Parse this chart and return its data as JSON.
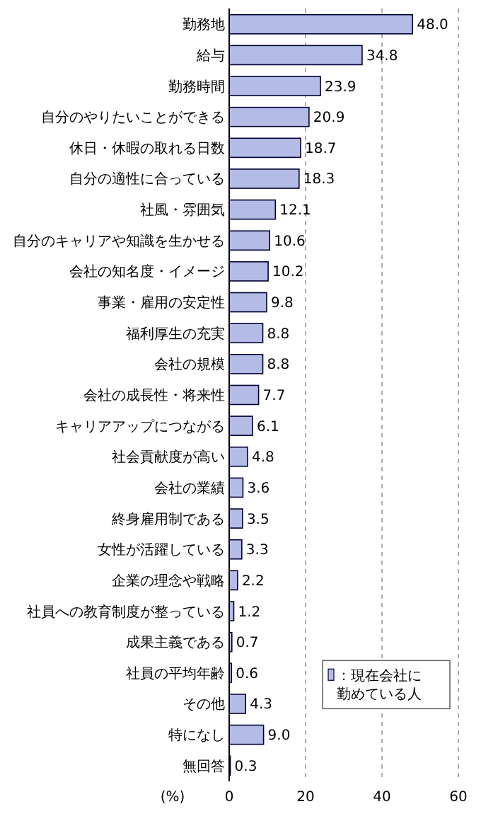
{
  "chart_data": {
    "type": "bar",
    "orientation": "horizontal",
    "xlabel": "(%)",
    "categories": [
      "勤務地",
      "給与",
      "勤務時間",
      "自分のやりたいことができる",
      "休日・休暇の取れる日数",
      "自分の適性に合っている",
      "社風・雰囲気",
      "自分のキャリアや知識を生かせる",
      "会社の知名度・イメージ",
      "事業・雇用の安定性",
      "福利厚生の充実",
      "会社の規模",
      "会社の成長性・将来性",
      "キャリアアップにつながる",
      "社会貢献度が高い",
      "会社の業績",
      "終身雇用制である",
      "女性が活躍している",
      "企業の理念や戦略",
      "社員への教育制度が整っている",
      "成果主義である",
      "社員の平均年齢",
      "その他",
      "特になし",
      "無回答"
    ],
    "series": [
      {
        "name": "：現在会社に勤めている人",
        "color": "#b4bce6",
        "values": [
          48.0,
          34.8,
          23.9,
          20.9,
          18.7,
          18.3,
          12.1,
          10.6,
          10.2,
          9.8,
          8.8,
          8.8,
          7.7,
          6.1,
          4.8,
          3.6,
          3.5,
          3.3,
          2.2,
          1.2,
          0.7,
          0.6,
          4.3,
          9.0,
          0.3
        ],
        "value_labels": [
          "48.0",
          "34.8",
          "23.9",
          "20.9",
          "18.7",
          "18.3",
          "12.1",
          "10.6",
          "10.2",
          "9.8",
          "8.8",
          "8.8",
          "7.7",
          "6.1",
          "4.8",
          "3.6",
          "3.5",
          "3.3",
          "2.2",
          "1.2",
          "0.7",
          "0.6",
          "4.3",
          "9.0",
          "0.3"
        ]
      }
    ],
    "xlim": [
      0,
      60
    ],
    "xticks": [
      0,
      20,
      40,
      60
    ],
    "grid": "x",
    "legend": "bottom right"
  }
}
